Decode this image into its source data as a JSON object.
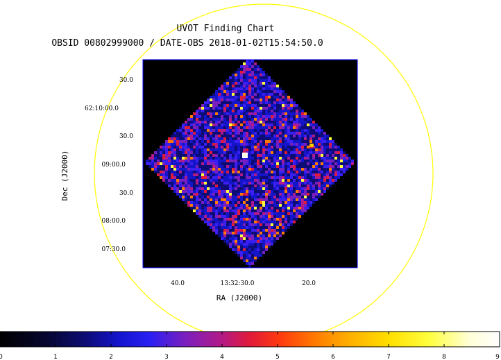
{
  "chart": {
    "title": "UVOT Finding Chart",
    "subtitle": "OBSID 00802999000 / DATE-OBS 2018-01-02T15:54:50.0",
    "ra_label": "RA (J2000)",
    "dec_label": "Dec (J2000)",
    "ra_ticks": [
      "40.0",
      "13:32:30.0",
      "20.0"
    ],
    "dec_ticks": [
      "30.0",
      "62:10:00.0",
      "30.0",
      "09:00.0",
      "30.0",
      "08:00.0",
      "07:30.0"
    ],
    "colorbar_ticks": [
      "0",
      "1",
      "2",
      "3",
      "4",
      "5",
      "6",
      "7",
      "8",
      "9"
    ],
    "colorbar_range": [
      0,
      9
    ],
    "colormap": [
      "#000000",
      "#06062e",
      "#0c0c74",
      "#1414c8",
      "#3b1ff2",
      "#7a1fbf",
      "#b01a8a",
      "#e01a3a",
      "#ff3a10",
      "#ff7a00",
      "#ffb000",
      "#ffe000",
      "#ffff40",
      "#ffffd8",
      "#ffffff"
    ],
    "accent_colors": {
      "circle": "#ffff00",
      "frame": "#0000ff",
      "image_background": "#000000"
    }
  }
}
